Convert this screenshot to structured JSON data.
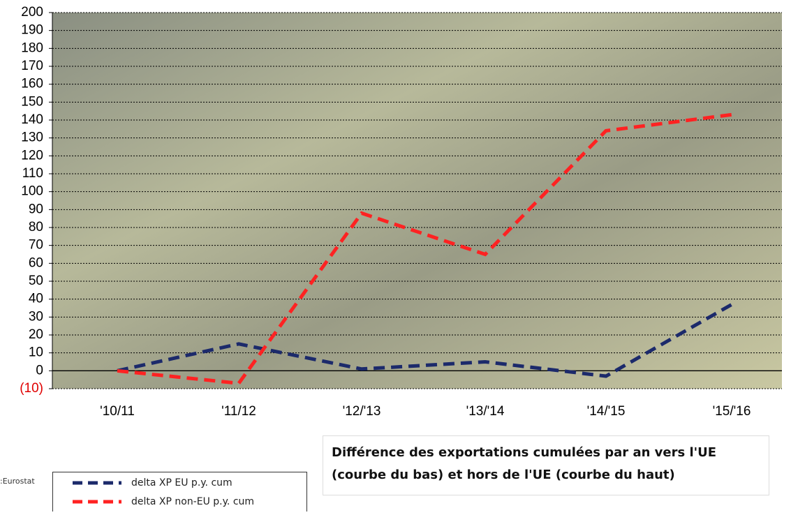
{
  "chart_data": {
    "type": "line",
    "title": "Différence des exportations cumulées par an vers l'UE (courbe du bas) et hors de l'UE (courbe du haut)",
    "source": ":Eurostat",
    "categories": [
      "'10/11",
      "'11/12",
      "'12/'13",
      "'13/'14",
      "'14/'15",
      "'15/'16"
    ],
    "series": [
      {
        "name": "delta XP EU p.y. cum",
        "color": "#1c2a6b",
        "values": [
          0,
          15,
          1,
          5,
          -3,
          37
        ]
      },
      {
        "name": "delta XP non-EU p.y. cum",
        "color": "#ff2222",
        "values": [
          0,
          -7,
          88,
          65,
          134,
          143
        ]
      }
    ],
    "ylim": [
      -10,
      200
    ],
    "yticks": [
      {
        "value": -10,
        "label": "(10)"
      },
      0,
      10,
      20,
      30,
      40,
      50,
      60,
      70,
      80,
      90,
      100,
      110,
      120,
      130,
      140,
      150,
      160,
      170,
      180,
      190,
      200
    ],
    "negative_label_color": "#e00000",
    "grid": true
  }
}
